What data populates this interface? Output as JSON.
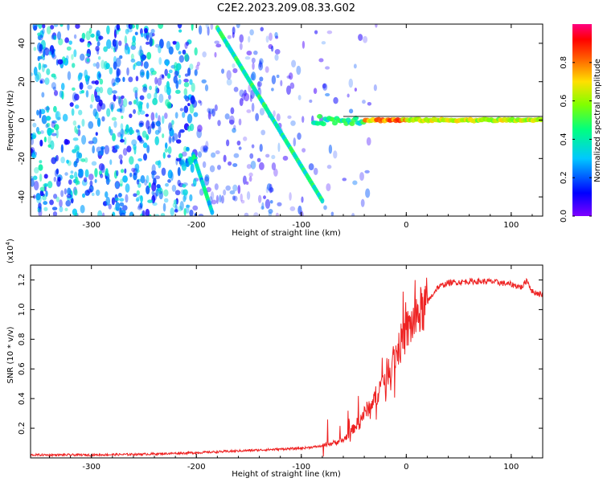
{
  "chart_data": [
    {
      "type": "heatmap",
      "title": "C2E2.2023.209.08.33.G02",
      "xlabel": "Height of straight line (km)",
      "ylabel": "Frequency (Hz)",
      "xlim": [
        -358,
        130
      ],
      "ylim": [
        -50,
        50
      ],
      "xticks": [
        -300,
        -200,
        -100,
        0,
        100
      ],
      "yticks": [
        -40,
        -20,
        0,
        20,
        40
      ],
      "grid": false,
      "colorbar": {
        "label": "Normalized spectral amplitude",
        "range": [
          0.0,
          1.0
        ],
        "ticks": [
          0.0,
          0.2,
          0.4,
          0.6,
          0.8
        ],
        "colormap": [
          "#7f00ff",
          "#0000ff",
          "#00c8ff",
          "#00ff80",
          "#80ff00",
          "#ffe000",
          "#ff6000",
          "#ff0000",
          "#ff0080"
        ]
      },
      "features": {
        "diagonal_trace_upper": {
          "x": [
            -180,
            -80
          ],
          "y": [
            48,
            -42
          ]
        },
        "diagonal_trace_lower": {
          "x": [
            -203,
            -185
          ],
          "y": [
            -18,
            -48
          ]
        },
        "carrier_line": {
          "x": [
            -88,
            130
          ],
          "y": [
            0,
            0
          ]
        }
      }
    },
    {
      "type": "line",
      "xlabel": "Height of straight line (km)",
      "ylabel": "SNR (10 * v/v)",
      "y_multiplier_label": "(x10",
      "y_multiplier_exp": "4",
      "y_multiplier_close": ")",
      "xlim": [
        -358,
        130
      ],
      "ylim": [
        0,
        1.3
      ],
      "xticks": [
        -300,
        -200,
        -100,
        0,
        100
      ],
      "yticks": [
        0.2,
        0.4,
        0.6,
        0.8,
        1.0,
        1.2
      ],
      "grid": false,
      "series": [
        {
          "color": "#ee2222",
          "x": [
            -358,
            -300,
            -250,
            -200,
            -150,
            -100,
            -80,
            -60,
            -50,
            -40,
            -30,
            -20,
            -10,
            0,
            10,
            20,
            30,
            40,
            60,
            80,
            100,
            110,
            115,
            120,
            130
          ],
          "y": [
            0.02,
            0.02,
            0.025,
            0.035,
            0.05,
            0.065,
            0.08,
            0.12,
            0.2,
            0.3,
            0.4,
            0.55,
            0.7,
            0.85,
            0.95,
            1.05,
            1.15,
            1.18,
            1.19,
            1.19,
            1.17,
            1.15,
            1.2,
            1.12,
            1.1
          ]
        }
      ]
    }
  ]
}
